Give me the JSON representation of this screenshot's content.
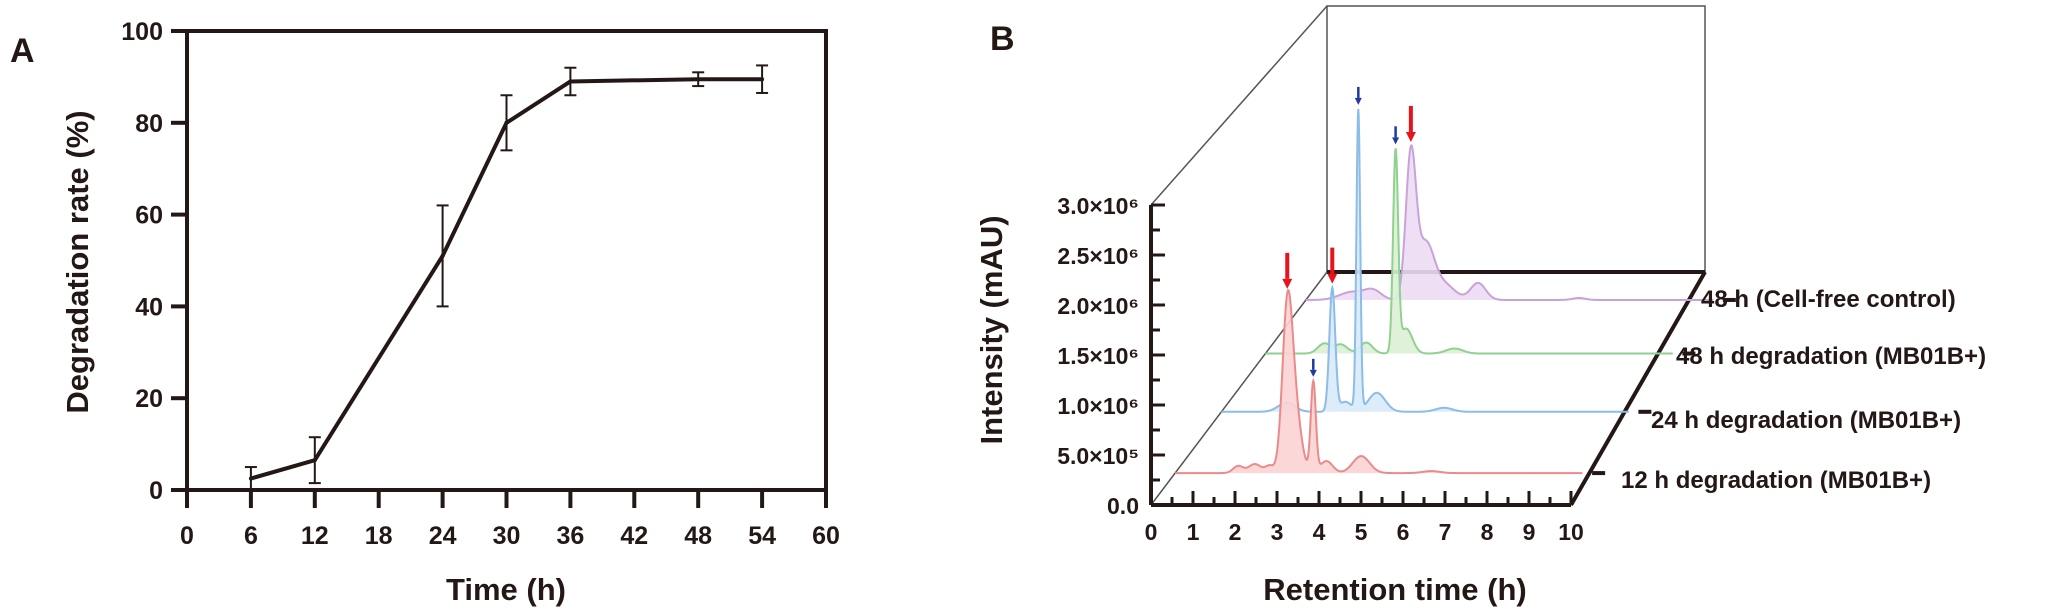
{
  "chart_data": [
    {
      "panel": "A",
      "type": "line",
      "xlabel": "Time (h)",
      "ylabel": "Degradation rate (%)",
      "xlim": [
        0,
        60
      ],
      "ylim": [
        0,
        100
      ],
      "xticks": [
        0,
        6,
        12,
        18,
        24,
        30,
        36,
        42,
        48,
        54,
        60
      ],
      "yticks": [
        0,
        20,
        40,
        60,
        80,
        100
      ],
      "grid": false,
      "x": [
        6,
        12,
        24,
        30,
        36,
        48,
        54
      ],
      "y": [
        2.5,
        6.5,
        51,
        80,
        89,
        89.5,
        89.5
      ],
      "error": [
        2.5,
        5,
        11,
        6,
        3,
        1.5,
        3
      ],
      "color": "#231815"
    },
    {
      "panel": "B",
      "type": "area",
      "style": "3D waterfall",
      "xlabel": "Retention time (h)",
      "ylabel": "Intensity (mAU)",
      "xlim": [
        0,
        10
      ],
      "ylim": [
        0,
        3000000
      ],
      "xticks": [
        "0",
        "1",
        "2",
        "3",
        "4",
        "5",
        "6",
        "7",
        "8",
        "9",
        "10"
      ],
      "yticks": [
        "0.0",
        "5.0×10⁵",
        "1.0×10⁶",
        "1.5×10⁶",
        "2.0×10⁶",
        "2.5×10⁶",
        "3.0×10⁶"
      ],
      "series": [
        {
          "name": "12 h degradation (MB01B+)",
          "line": "#ec8a8a",
          "fill": "#fbd3d3",
          "peaks": [
            {
              "rt": 1.5,
              "h": 70000,
              "w": 0.12
            },
            {
              "rt": 1.9,
              "h": 90000,
              "w": 0.15
            },
            {
              "rt": 2.25,
              "h": 70000,
              "w": 0.1
            },
            {
              "rt": 2.67,
              "h": 1510000,
              "w": 0.12
            },
            {
              "rt": 2.85,
              "h": 600000,
              "w": 0.15
            },
            {
              "rt": 3.29,
              "h": 900000,
              "w": 0.06
            },
            {
              "rt": 3.6,
              "h": 120000,
              "w": 0.15
            },
            {
              "rt": 4.43,
              "h": 170000,
              "w": 0.2
            },
            {
              "rt": 6.1,
              "h": 20000,
              "w": 0.2
            }
          ],
          "markers": [
            {
              "rt": 2.67,
              "kind": "red"
            },
            {
              "rt": 3.29,
              "kind": "blue"
            }
          ]
        },
        {
          "name": "24 h degradation (MB01B+)",
          "line": "#8bbde8",
          "fill": "#d8eaf8",
          "peaks": [
            {
              "rt": 1.55,
              "h": 90000,
              "w": 0.2
            },
            {
              "rt": 2.64,
              "h": 1230000,
              "w": 0.07
            },
            {
              "rt": 3.26,
              "h": 3000000,
              "w": 0.045
            },
            {
              "rt": 3.7,
              "h": 190000,
              "w": 0.2
            },
            {
              "rt": 2.95,
              "h": 100000,
              "w": 0.15
            },
            {
              "rt": 5.3,
              "h": 40000,
              "w": 0.2
            }
          ],
          "markers": [
            {
              "rt": 2.64,
              "kind": "red"
            },
            {
              "rt": 3.26,
              "kind": "blue"
            }
          ]
        },
        {
          "name": "48 h degradation (MB01B+)",
          "line": "#8fd18f",
          "fill": "#dcf1d5",
          "peaks": [
            {
              "rt": 1.4,
              "h": 100000,
              "w": 0.15
            },
            {
              "rt": 1.8,
              "h": 90000,
              "w": 0.15
            },
            {
              "rt": 2.4,
              "h": 110000,
              "w": 0.15
            },
            {
              "rt": 3.1,
              "h": 1990000,
              "w": 0.06
            },
            {
              "rt": 3.35,
              "h": 250000,
              "w": 0.15
            },
            {
              "rt": 4.5,
              "h": 50000,
              "w": 0.2
            }
          ],
          "markers": [
            {
              "rt": 3.1,
              "kind": "blue"
            }
          ]
        },
        {
          "name": "48 h (Cell-free control)",
          "line": "#c9a2da",
          "fill": "#ecdcf3",
          "peaks": [
            {
              "rt": 1.1,
              "h": 80000,
              "w": 0.3
            },
            {
              "rt": 1.6,
              "h": 90000,
              "w": 0.2
            },
            {
              "rt": 2.5,
              "h": 1420000,
              "w": 0.12
            },
            {
              "rt": 2.85,
              "h": 550000,
              "w": 0.2
            },
            {
              "rt": 3.3,
              "h": 150000,
              "w": 0.25
            },
            {
              "rt": 4.1,
              "h": 170000,
              "w": 0.18
            },
            {
              "rt": 6.5,
              "h": 20000,
              "w": 0.15
            }
          ],
          "markers": [
            {
              "rt": 2.5,
              "kind": "red"
            }
          ]
        }
      ],
      "arrow_colors": {
        "red": "#e8141b",
        "blue": "#1f3a9c"
      }
    }
  ],
  "panels": {
    "a_label": "A",
    "b_label": "B"
  }
}
